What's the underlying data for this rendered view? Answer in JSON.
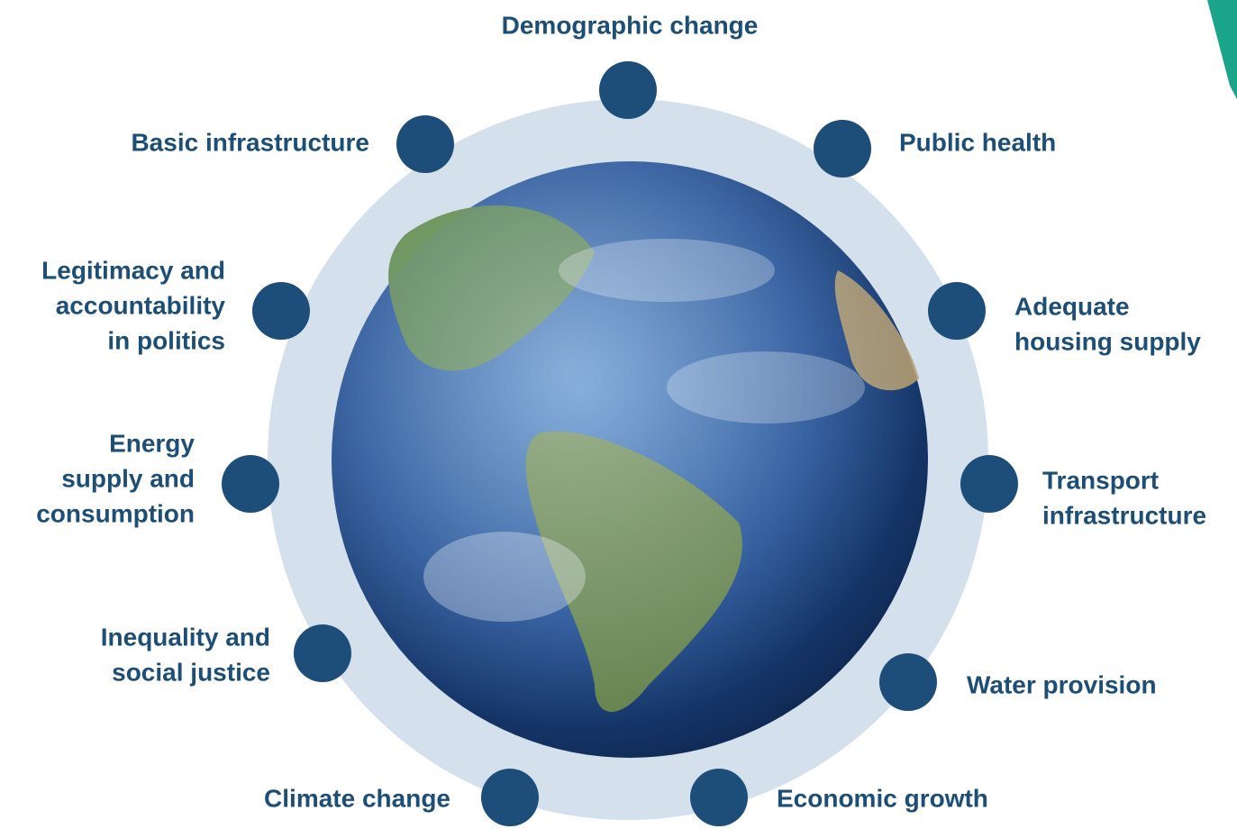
{
  "nodes": [
    {
      "label": [
        "Demographic change"
      ]
    },
    {
      "label": [
        "Public health"
      ]
    },
    {
      "label": [
        "Adequate",
        "housing supply"
      ]
    },
    {
      "label": [
        "Transport",
        "infrastructure"
      ]
    },
    {
      "label": [
        "Water provision"
      ]
    },
    {
      "label": [
        "Economic growth"
      ]
    },
    {
      "label": [
        "Climate change"
      ]
    },
    {
      "label": [
        "Inequality and",
        "social justice"
      ]
    },
    {
      "label": [
        "Energy",
        "supply and",
        "consumption"
      ]
    },
    {
      "label": [
        "Legitimacy and",
        "accountability",
        "in politics"
      ]
    },
    {
      "label": [
        "Basic infrastructure"
      ]
    }
  ]
}
